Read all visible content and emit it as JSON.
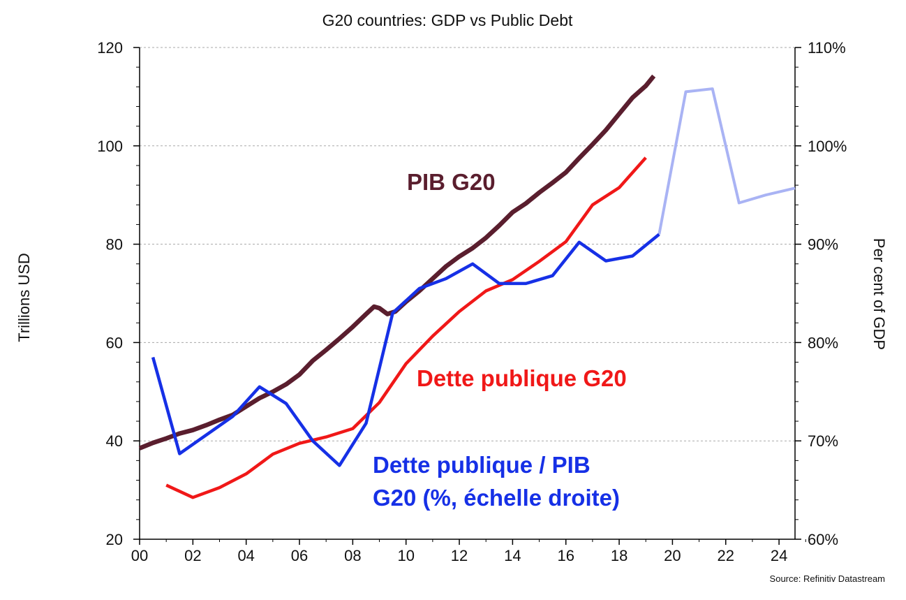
{
  "chart_data": {
    "type": "line",
    "title": "G20 countries:  GDP vs Public Debt",
    "ylabel_left": "Trillions USD",
    "ylabel_right": "Per cent of GDP",
    "source": "Source: Refinitiv Datastream",
    "x_range": [
      0,
      24.6
    ],
    "x_ticks": [
      {
        "value": 0,
        "label": "00"
      },
      {
        "value": 2,
        "label": "02"
      },
      {
        "value": 4,
        "label": "04"
      },
      {
        "value": 6,
        "label": "06"
      },
      {
        "value": 8,
        "label": "08"
      },
      {
        "value": 10,
        "label": "10"
      },
      {
        "value": 12,
        "label": "12"
      },
      {
        "value": 14,
        "label": "14"
      },
      {
        "value": 16,
        "label": "16"
      },
      {
        "value": 18,
        "label": "18"
      },
      {
        "value": 20,
        "label": "20"
      },
      {
        "value": 22,
        "label": "22"
      },
      {
        "value": 24,
        "label": "24"
      }
    ],
    "y_left": {
      "min": 20,
      "max": 120,
      "ticks": [
        20,
        40,
        60,
        80,
        100,
        120
      ]
    },
    "y_right": {
      "min": 60,
      "max": 110,
      "ticks": [
        "60%",
        "70%",
        "80%",
        "90%",
        "100%",
        "110%"
      ]
    },
    "grid": true,
    "annotations": {
      "gdp": "PIB G20",
      "debt": "Dette publique G20",
      "ratio_line1": "Dette publique / PIB",
      "ratio_line2": "G20 (%, échelle droite)"
    },
    "series": [
      {
        "key": "gdp",
        "axis": "left",
        "color": "#5a1e2e",
        "points": [
          [
            0,
            38.5
          ],
          [
            0.5,
            39.6
          ],
          [
            1,
            40.5
          ],
          [
            1.5,
            41.5
          ],
          [
            2,
            42.2
          ],
          [
            2.5,
            43.2
          ],
          [
            3,
            44.3
          ],
          [
            3.5,
            45.3
          ],
          [
            4,
            47.0
          ],
          [
            4.5,
            48.7
          ],
          [
            5,
            50.0
          ],
          [
            5.5,
            51.5
          ],
          [
            6,
            53.5
          ],
          [
            6.5,
            56.3
          ],
          [
            7,
            58.5
          ],
          [
            7.5,
            60.8
          ],
          [
            8,
            63.2
          ],
          [
            8.5,
            65.8
          ],
          [
            8.8,
            67.3
          ],
          [
            9,
            67.0
          ],
          [
            9.3,
            65.8
          ],
          [
            9.6,
            66.3
          ],
          [
            10,
            68.3
          ],
          [
            10.5,
            70.5
          ],
          [
            11,
            73.0
          ],
          [
            11.5,
            75.5
          ],
          [
            12,
            77.5
          ],
          [
            12.5,
            79.2
          ],
          [
            13,
            81.3
          ],
          [
            13.5,
            83.8
          ],
          [
            14,
            86.5
          ],
          [
            14.5,
            88.3
          ],
          [
            15,
            90.5
          ],
          [
            15.5,
            92.5
          ],
          [
            16,
            94.6
          ],
          [
            16.5,
            97.5
          ],
          [
            17,
            100.3
          ],
          [
            17.5,
            103.2
          ],
          [
            18,
            106.5
          ],
          [
            18.5,
            109.8
          ],
          [
            19,
            112.2
          ],
          [
            19.3,
            114.2
          ]
        ]
      },
      {
        "key": "debt",
        "axis": "left",
        "color": "#f01818",
        "points": [
          [
            1,
            31.0
          ],
          [
            2,
            28.5
          ],
          [
            3,
            30.5
          ],
          [
            4,
            33.3
          ],
          [
            5,
            37.3
          ],
          [
            6,
            39.5
          ],
          [
            7,
            40.8
          ],
          [
            8,
            42.5
          ],
          [
            9,
            47.8
          ],
          [
            10,
            55.7
          ],
          [
            11,
            61.3
          ],
          [
            12,
            66.3
          ],
          [
            13,
            70.5
          ],
          [
            14,
            72.8
          ],
          [
            15,
            76.5
          ],
          [
            16,
            80.5
          ],
          [
            17,
            88.0
          ],
          [
            18,
            91.5
          ],
          [
            19,
            97.6
          ]
        ]
      },
      {
        "key": "ratio",
        "axis": "right",
        "color": "#1630e6",
        "points": [
          [
            0.5,
            78.5
          ],
          [
            1.5,
            68.7
          ],
          [
            3.5,
            72.5
          ],
          [
            4.5,
            75.5
          ],
          [
            5.5,
            73.8
          ],
          [
            6.5,
            70.0
          ],
          [
            7.5,
            67.5
          ],
          [
            8.5,
            71.8
          ],
          [
            9.5,
            83.0
          ],
          [
            10.5,
            85.5
          ],
          [
            11.5,
            86.5
          ],
          [
            12.5,
            88.0
          ],
          [
            13.5,
            86.0
          ],
          [
            14.5,
            86.0
          ],
          [
            15.5,
            86.8
          ],
          [
            16.5,
            90.2
          ],
          [
            17.5,
            88.3
          ],
          [
            18.5,
            88.8
          ],
          [
            19.5,
            91.0
          ]
        ]
      },
      {
        "key": "ratio_forecast",
        "axis": "right",
        "color": "#a9b3f4",
        "points": [
          [
            19.5,
            91.0
          ],
          [
            20.5,
            105.5
          ],
          [
            21.5,
            105.8
          ],
          [
            22.5,
            94.2
          ],
          [
            23.5,
            95.0
          ],
          [
            24.6,
            95.7
          ]
        ]
      }
    ]
  }
}
